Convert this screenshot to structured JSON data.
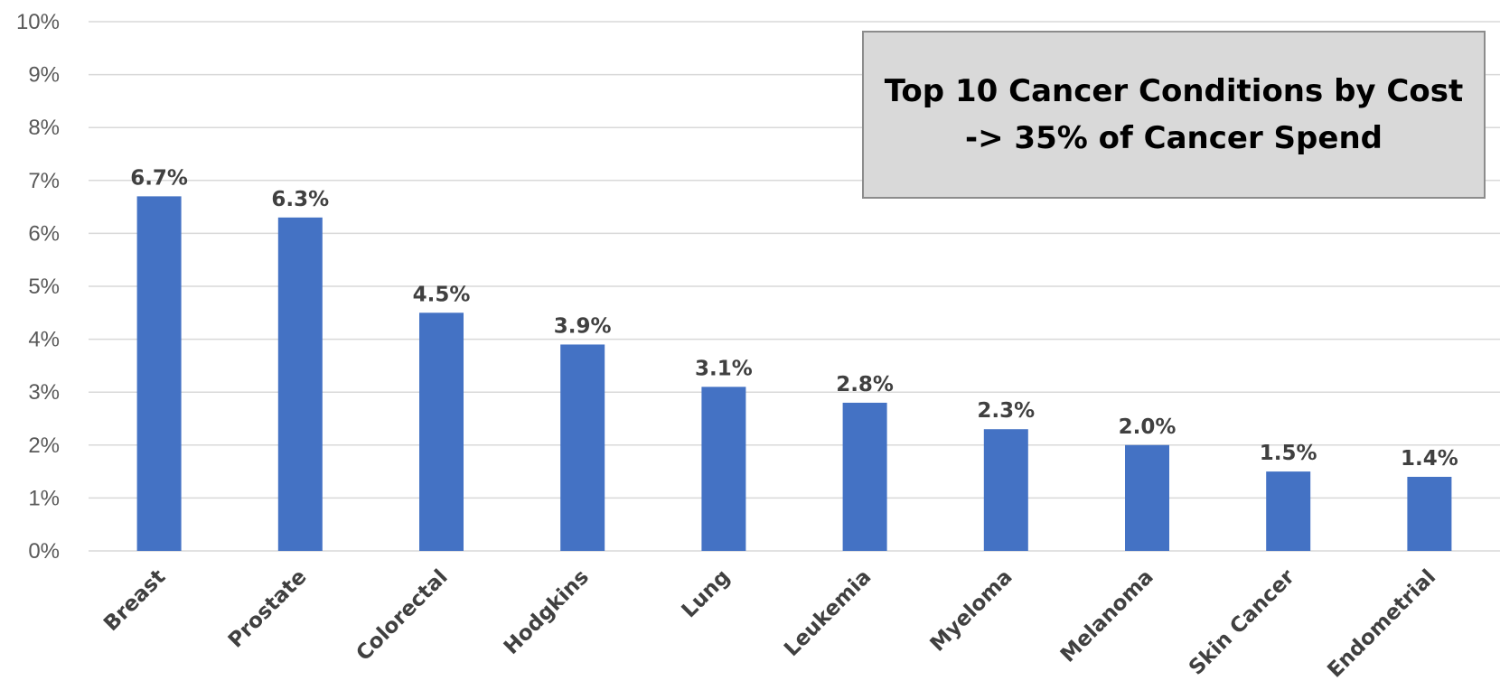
{
  "chart_data": {
    "type": "bar",
    "categories": [
      "Breast",
      "Prostate",
      "Colorectal",
      "Hodgkins",
      "Lung",
      "Leukemia",
      "Myeloma",
      "Melanoma",
      "Skin Cancer",
      "Endometrial"
    ],
    "values": [
      6.7,
      6.3,
      4.5,
      3.9,
      3.1,
      2.8,
      2.3,
      2.0,
      1.5,
      1.4
    ],
    "data_labels": [
      "6.7%",
      "6.3%",
      "4.5%",
      "3.9%",
      "3.1%",
      "2.8%",
      "2.3%",
      "2.0%",
      "1.5%",
      "1.4%"
    ],
    "y_ticks": [
      "0%",
      "1%",
      "2%",
      "3%",
      "4%",
      "5%",
      "6%",
      "7%",
      "8%",
      "9%",
      "10%"
    ],
    "ylim": [
      0,
      10
    ],
    "grid": true,
    "bar_color": "#4472c4",
    "title": "",
    "xlabel": "",
    "ylabel": ""
  },
  "callout": {
    "line1": "Top 10 Cancer Conditions by Cost",
    "line2": "-> 35% of Cancer Spend",
    "background": "#d9d9d9"
  }
}
